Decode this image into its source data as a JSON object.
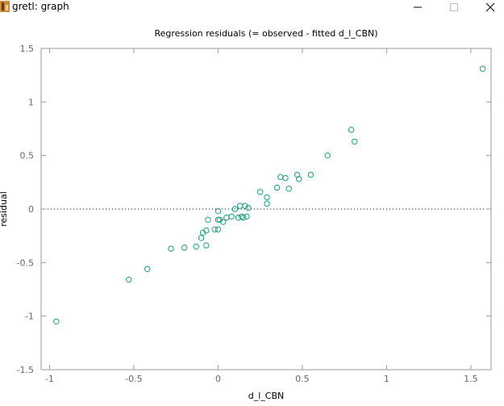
{
  "window": {
    "title": "gretl: graph",
    "icon": "gretl-app-icon",
    "controls": [
      "minimize-icon",
      "maximize-icon",
      "close-icon"
    ]
  },
  "colors": {
    "marker": "#1a9e77",
    "axis": "#999999",
    "text": "#000000",
    "ticklabel": "#666666",
    "zero_line": "#000000"
  },
  "chart_data": {
    "type": "scatter",
    "title": "Regression residuals (= observed - fitted d_l_CBN)",
    "xlabel": "d_l_CBN",
    "ylabel": "residual",
    "xlim": [
      -1.05,
      1.62
    ],
    "ylim": [
      -1.5,
      1.5
    ],
    "xticks": [
      -1,
      -0.5,
      0,
      0.5,
      1,
      1.5
    ],
    "yticks": [
      -1.5,
      -1,
      -0.5,
      0,
      0.5,
      1,
      1.5
    ],
    "xtick_labels": [
      "-1",
      "-0.5",
      "0",
      "0.5",
      "1",
      "1.5"
    ],
    "ytick_labels": [
      "-1.5",
      "-1",
      "-0.5",
      "0",
      "0.5",
      "1",
      "1.5"
    ],
    "zero_reference_line": true,
    "grid": false,
    "series": [
      {
        "x": [
          -0.96,
          -0.53,
          -0.42,
          -0.28,
          -0.2,
          -0.13,
          -0.1,
          -0.09,
          -0.07,
          -0.07,
          -0.06,
          -0.02,
          0.0,
          0.0,
          0.0,
          0.01,
          0.03,
          0.05,
          0.08,
          0.1,
          0.12,
          0.13,
          0.14,
          0.15,
          0.16,
          0.17,
          0.18,
          0.25,
          0.29,
          0.29,
          0.35,
          0.37,
          0.4,
          0.42,
          0.47,
          0.48,
          0.55,
          0.65,
          0.79,
          0.81,
          1.57
        ],
        "y": [
          -1.05,
          -0.66,
          -0.56,
          -0.37,
          -0.36,
          -0.35,
          -0.27,
          -0.22,
          -0.34,
          -0.2,
          -0.1,
          -0.19,
          -0.02,
          -0.1,
          -0.19,
          -0.1,
          -0.12,
          -0.08,
          -0.07,
          0.0,
          -0.08,
          0.03,
          -0.07,
          -0.08,
          0.03,
          -0.07,
          0.01,
          0.16,
          0.05,
          0.11,
          0.2,
          0.3,
          0.29,
          0.19,
          0.32,
          0.28,
          0.32,
          0.5,
          0.74,
          0.63,
          1.31
        ]
      }
    ]
  }
}
